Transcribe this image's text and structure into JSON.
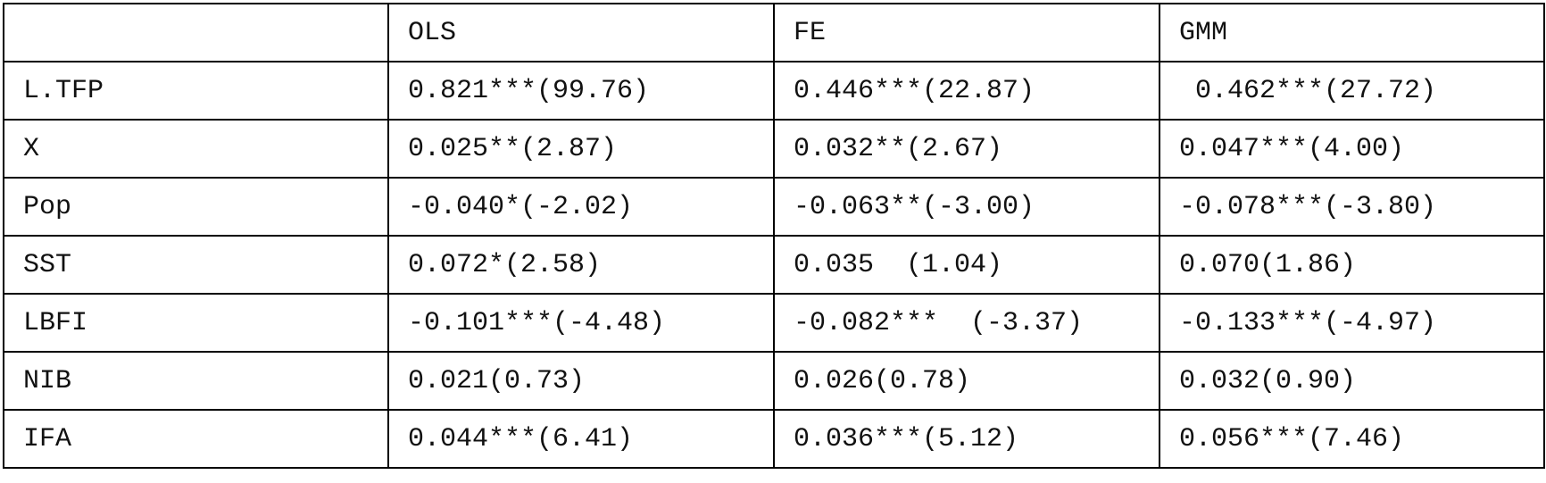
{
  "table": {
    "header": [
      "OLS",
      "FE",
      "GMM"
    ],
    "rows": [
      [
        "L.TFP",
        "0.821***(99.76)",
        "0.446***(22.87)",
        " 0.462***(27.72)"
      ],
      [
        "X",
        "0.025**(2.87)",
        "0.032**(2.67)",
        "0.047***(4.00)"
      ],
      [
        "Pop",
        "-0.040*(-2.02)",
        "-0.063**(-3.00)",
        "-0.078***(-3.80)"
      ],
      [
        "SST",
        "0.072*(2.58)",
        "0.035  (1.04)",
        "0.070(1.86)"
      ],
      [
        "LBFI",
        "-0.101***(-4.48)",
        "-0.082***  (-3.37)",
        "-0.133***(-4.97)"
      ],
      [
        "NIB",
        "0.021(0.73)",
        "0.026(0.78)",
        "0.032(0.90)"
      ],
      [
        "IFA",
        "0.044***(6.41)",
        "0.036***(5.12)",
        "0.056***(7.46)"
      ]
    ]
  }
}
